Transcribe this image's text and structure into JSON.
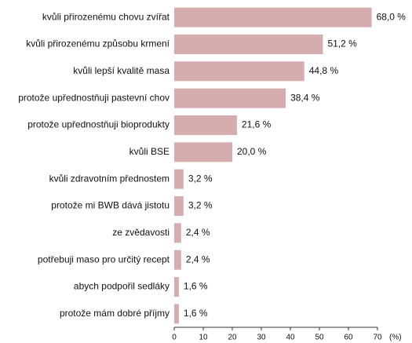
{
  "chart_data": {
    "type": "barh",
    "categories": [
      "kvůli přirozenému chovu zvířat",
      "kvůli přirozenému způsobu krmení",
      "kvůli lepší kvalitě masa",
      "protože upřednostňuji pastevní chov",
      "protože upřednostňuji bioprodukty",
      "kvůli BSE",
      "kvůli zdravotním přednostem",
      "protože mi BWB dává jistotu",
      "ze zvědavosti",
      "potřebuji maso pro určitý recept",
      "abych podpořil sedláky",
      "protože mám dobré příjmy"
    ],
    "values": [
      68.0,
      51.2,
      44.8,
      38.4,
      21.6,
      20.0,
      3.2,
      3.2,
      2.4,
      2.4,
      1.6,
      1.6
    ],
    "value_labels": [
      "68,0 %",
      "51,2 %",
      "44,8 %",
      "38,4 %",
      "21,6 %",
      "20,0 %",
      "3,2 %",
      "3,2 %",
      "2,4 %",
      "2,4 %",
      "1,6 %",
      "1,6 %"
    ],
    "color": "#d6adae",
    "xlim": [
      0,
      70
    ],
    "xticks": [
      0,
      10,
      20,
      30,
      40,
      50,
      60,
      70
    ],
    "x_label": "(%)"
  }
}
